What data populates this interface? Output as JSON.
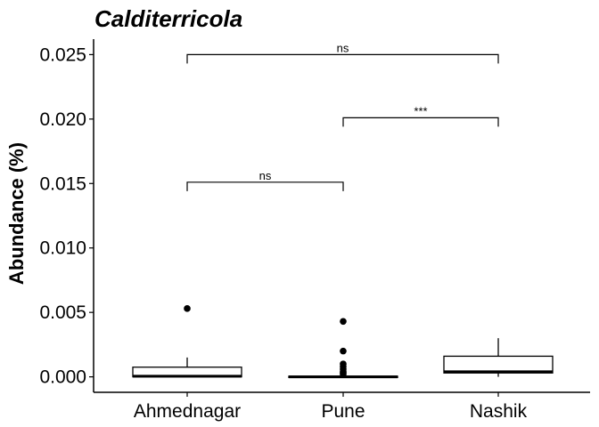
{
  "chart_data": {
    "type": "box",
    "title": "Calditerricola",
    "xlabel": "",
    "ylabel": "Abundance (%)",
    "ylim": [
      -0.0012,
      0.0262
    ],
    "yticks": [
      0.0,
      0.005,
      0.01,
      0.015,
      0.02,
      0.025
    ],
    "ytick_labels": [
      "0.000",
      "0.005",
      "0.010",
      "0.015",
      "0.020",
      "0.025"
    ],
    "categories": [
      "Ahmednagar",
      "Pune",
      "Nashik"
    ],
    "boxes": [
      {
        "q1": 0.0,
        "median": 5e-05,
        "q3": 0.00075,
        "whisker_low": 0.0,
        "whisker_high": 0.0015,
        "outliers": [
          0.0053
        ]
      },
      {
        "q1": 0.0,
        "median": 0.0,
        "q3": 5e-05,
        "whisker_low": 0.0,
        "whisker_high": 0.0001,
        "outliers": [
          0.0043,
          0.002,
          0.001,
          0.0008,
          0.0006,
          0.0004,
          0.0003,
          0.0002
        ]
      },
      {
        "q1": 0.0003,
        "median": 0.0004,
        "q3": 0.0016,
        "whisker_low": 0.0,
        "whisker_high": 0.003,
        "outliers": []
      }
    ],
    "comparisons": [
      {
        "from": 0,
        "to": 1,
        "y": 0.0151,
        "label": "ns"
      },
      {
        "from": 1,
        "to": 2,
        "y": 0.0201,
        "label": "***"
      },
      {
        "from": 0,
        "to": 2,
        "y": 0.025,
        "label": "ns"
      }
    ],
    "grid": false,
    "legend": "none"
  }
}
